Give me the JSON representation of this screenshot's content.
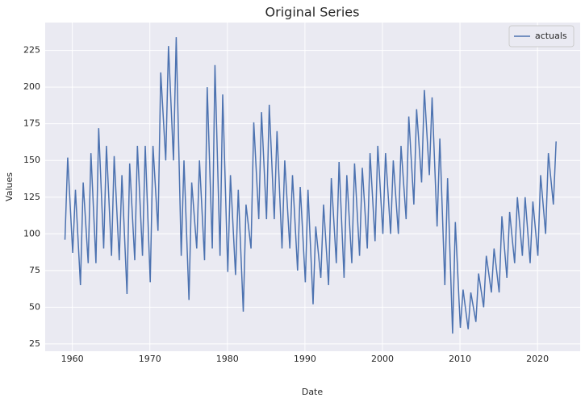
{
  "chart_data": {
    "type": "line",
    "title": "Original Series",
    "x_label": "Date",
    "y_label": "Values",
    "x": [
      1959.05,
      1959.4,
      1960.05,
      1960.4,
      1961.05,
      1961.4,
      1962.05,
      1962.4,
      1963.05,
      1963.4,
      1964.05,
      1964.4,
      1965.05,
      1965.4,
      1966.05,
      1966.4,
      1967.05,
      1967.4,
      1968.05,
      1968.4,
      1969.05,
      1969.4,
      1970.05,
      1970.4,
      1971.05,
      1971.4,
      1972.05,
      1972.4,
      1973.05,
      1973.4,
      1974.05,
      1974.4,
      1975.05,
      1975.4,
      1976.05,
      1976.4,
      1977.05,
      1977.4,
      1978.05,
      1978.4,
      1979.05,
      1979.4,
      1980.05,
      1980.4,
      1981.05,
      1981.4,
      1982.05,
      1982.4,
      1983.05,
      1983.4,
      1984.05,
      1984.4,
      1985.05,
      1985.4,
      1986.05,
      1986.4,
      1987.05,
      1987.4,
      1988.05,
      1988.4,
      1989.05,
      1989.4,
      1990.05,
      1990.4,
      1991.05,
      1991.4,
      1992.05,
      1992.4,
      1993.05,
      1993.4,
      1994.05,
      1994.4,
      1995.05,
      1995.4,
      1996.05,
      1996.4,
      1997.05,
      1997.4,
      1998.05,
      1998.4,
      1999.05,
      1999.4,
      2000.05,
      2000.4,
      2001.05,
      2001.4,
      2002.05,
      2002.4,
      2003.05,
      2003.4,
      2004.05,
      2004.4,
      2005.05,
      2005.4,
      2006.05,
      2006.4,
      2007.05,
      2007.4,
      2008.05,
      2008.4,
      2009.05,
      2009.4,
      2010.05,
      2010.4,
      2011.05,
      2011.4,
      2012.05,
      2012.4,
      2013.05,
      2013.4,
      2014.05,
      2014.4,
      2015.05,
      2015.4,
      2016.05,
      2016.4,
      2017.05,
      2017.4,
      2018.05,
      2018.4,
      2019.05,
      2019.4,
      2020.05,
      2020.4,
      2021.05,
      2021.4,
      2022.05,
      2022.4
    ],
    "series": [
      {
        "name": "actuals",
        "color": "#4c72b0",
        "values": [
          96,
          152,
          87,
          130,
          65,
          135,
          80,
          155,
          80,
          172,
          90,
          160,
          85,
          153,
          82,
          140,
          59,
          148,
          82,
          160,
          85,
          160,
          67,
          160,
          102,
          210,
          150,
          228,
          150,
          234,
          85,
          150,
          55,
          135,
          90,
          150,
          82,
          200,
          90,
          215,
          85,
          195,
          74,
          140,
          72,
          130,
          47,
          120,
          90,
          176,
          110,
          183,
          110,
          188,
          110,
          170,
          90,
          150,
          90,
          140,
          75,
          132,
          67,
          130,
          52,
          105,
          70,
          120,
          65,
          138,
          80,
          149,
          70,
          140,
          80,
          148,
          85,
          145,
          90,
          155,
          95,
          160,
          100,
          155,
          100,
          150,
          100,
          160,
          110,
          180,
          120,
          185,
          135,
          198,
          140,
          193,
          105,
          165,
          65,
          138,
          32,
          108,
          36,
          62,
          35,
          60,
          40,
          73,
          50,
          85,
          60,
          90,
          60,
          112,
          70,
          115,
          80,
          125,
          85,
          125,
          80,
          122,
          85,
          140,
          100,
          155,
          120,
          163
        ]
      }
    ],
    "xlim": [
      1956.5,
      2025.5
    ],
    "ylim": [
      20,
      244
    ],
    "xticks": [
      1960,
      1970,
      1980,
      1990,
      2000,
      2010,
      2020
    ],
    "yticks": [
      25,
      50,
      75,
      100,
      125,
      150,
      175,
      200,
      225
    ],
    "grid": true,
    "legend": "upper right"
  }
}
